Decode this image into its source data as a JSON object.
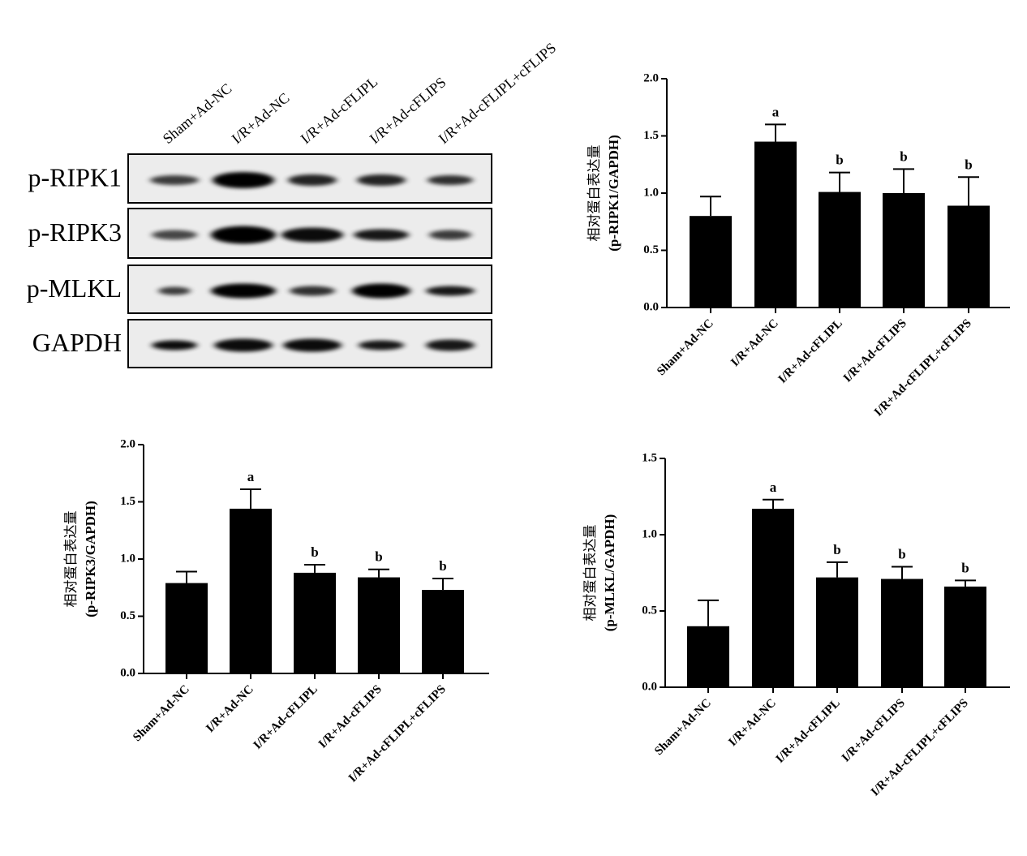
{
  "blot": {
    "lanes": [
      "Sham+Ad-NC",
      "I/R+Ad-NC",
      "I/R+Ad-cFLIPL",
      "I/R+Ad-cFLIPS",
      "I/R+Ad-cFLIPL+cFLIPS"
    ],
    "rows": [
      "p-RIPK1",
      "p-RIPK3",
      "p-MLKL",
      "GAPDH"
    ]
  },
  "chart_data": [
    {
      "type": "bar",
      "ylabel": [
        "相对蛋白表达量",
        "(p-RIPK1/GAPDH)"
      ],
      "categories": [
        "Sham+Ad-NC",
        "I/R+Ad-NC",
        "I/R+Ad-cFLIPL",
        "I/R+Ad-cFLIPS",
        "I/R+Ad-cFLIPL+cFLIPS"
      ],
      "values": [
        0.8,
        1.45,
        1.01,
        1.0,
        0.89
      ],
      "errors": [
        0.17,
        0.15,
        0.17,
        0.21,
        0.25
      ],
      "annotations": [
        null,
        "a",
        "b",
        "b",
        "b"
      ],
      "color": "#000000",
      "ylim": [
        0,
        2
      ],
      "yticks": [
        {
          "value": 0,
          "label": "0.0"
        },
        {
          "value": 0.5,
          "label": "0.5"
        },
        {
          "value": 1,
          "label": "1.0"
        },
        {
          "value": 1.5,
          "label": "1.5"
        },
        {
          "value": 2,
          "label": "2.0"
        }
      ]
    },
    {
      "type": "bar",
      "ylabel": [
        "相对蛋白表达量",
        "(p-RIPK3/GAPDH)"
      ],
      "categories": [
        "Sham+Ad-NC",
        "I/R+Ad-NC",
        "I/R+Ad-cFLIPL",
        "I/R+Ad-cFLIPS",
        "I/R+Ad-cFLIPL+cFLIPS"
      ],
      "values": [
        0.79,
        1.44,
        0.88,
        0.84,
        0.73
      ],
      "errors": [
        0.1,
        0.17,
        0.07,
        0.07,
        0.1
      ],
      "annotations": [
        null,
        "a",
        "b",
        "b",
        "b"
      ],
      "color": "#000000",
      "ylim": [
        0,
        2
      ],
      "yticks": [
        {
          "value": 0,
          "label": "0.0"
        },
        {
          "value": 0.5,
          "label": "0.5"
        },
        {
          "value": 1,
          "label": "1.0"
        },
        {
          "value": 1.5,
          "label": "1.5"
        },
        {
          "value": 2,
          "label": "2.0"
        }
      ]
    },
    {
      "type": "bar",
      "ylabel": [
        "相对蛋白表达量",
        "(p-MLKL/GAPDH)"
      ],
      "categories": [
        "Sham+Ad-NC",
        "I/R+Ad-NC",
        "I/R+Ad-cFLIPL",
        "I/R+Ad-cFLIPS",
        "I/R+Ad-cFLIPL+cFLIPS"
      ],
      "values": [
        0.4,
        1.17,
        0.72,
        0.71,
        0.66
      ],
      "errors": [
        0.17,
        0.06,
        0.1,
        0.08,
        0.04
      ],
      "annotations": [
        null,
        "a",
        "b",
        "b",
        "b"
      ],
      "color": "#000000",
      "ylim": [
        0,
        1.5
      ],
      "yticks": [
        {
          "value": 0,
          "label": "0.0"
        },
        {
          "value": 0.5,
          "label": "0.5"
        },
        {
          "value": 1,
          "label": "1.0"
        },
        {
          "value": 1.5,
          "label": "1.5"
        }
      ]
    }
  ]
}
